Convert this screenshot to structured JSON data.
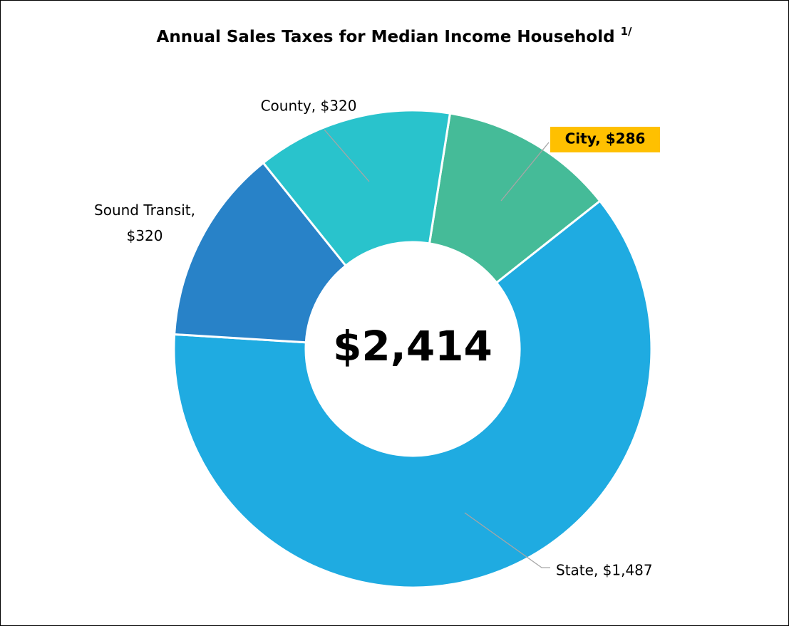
{
  "chart_data": {
    "type": "donut",
    "title": "Annual Sales Taxes for Median Income Household",
    "title_superscript": "1/",
    "center_label": "$2,414",
    "values": [
      286,
      1487,
      320,
      320
    ],
    "value_labels": [
      "City,  $286",
      "State,  $1,487",
      "Sound Transit, $320",
      "County,  $320"
    ],
    "colors": [
      "#45bb98",
      "#1fabe1",
      "#2882c8",
      "#29c3cc"
    ]
  }
}
